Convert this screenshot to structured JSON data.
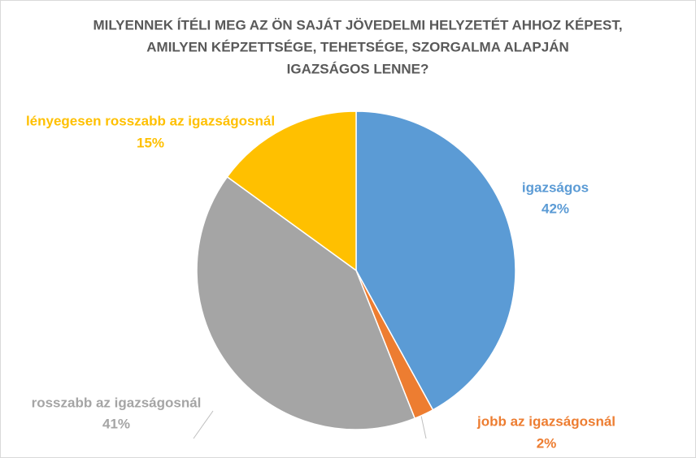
{
  "chart_data": {
    "type": "pie",
    "title": [
      "MILYENNEK ÍTÉLI MEG AZ ÖN SAJÁT JÖVEDELMI HELYZETÉT AHHOZ KÉPEST,",
      "AMILYEN KÉPZETTSÉGE, TEHETSÉGE, SZORGALMA ALAPJÁN",
      "IGAZSÁGOS LENNE?"
    ],
    "categories": [
      "igazságos",
      "jobb az igazságosnál",
      "rosszabb az igazságosnál",
      "lényegesen rosszabb az igazságosnál"
    ],
    "values": [
      42,
      2,
      41,
      15
    ],
    "value_labels": [
      "42%",
      "2%",
      "41%",
      "15%"
    ],
    "colors": [
      "#5b9bd5",
      "#ed7d31",
      "#a5a5a5",
      "#ffc000"
    ]
  }
}
